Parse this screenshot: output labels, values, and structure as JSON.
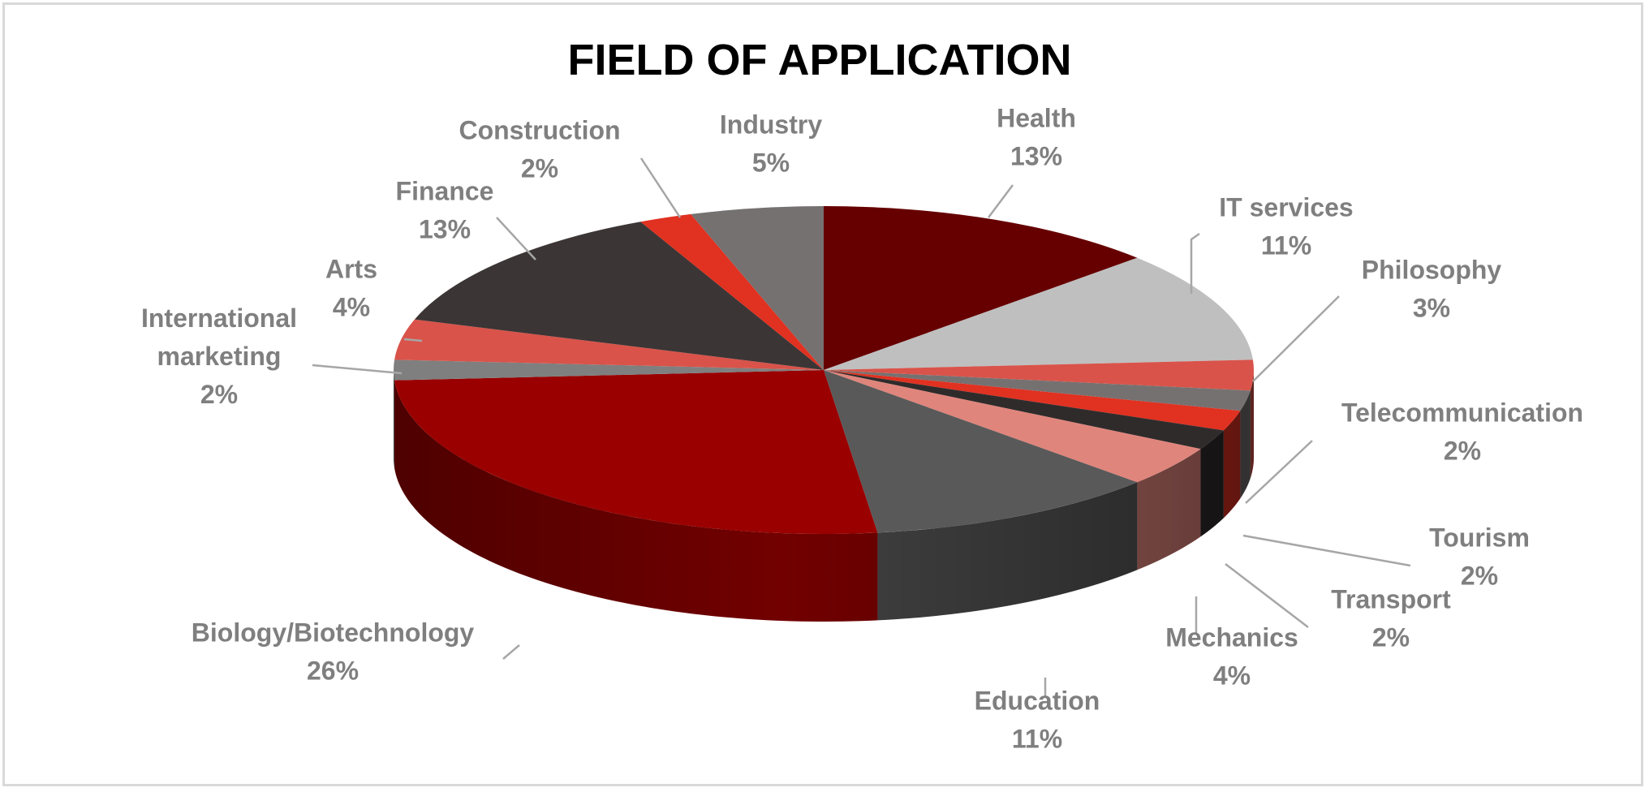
{
  "chart_data": {
    "type": "pie",
    "title": "FIELD OF APPLICATION",
    "slices": [
      {
        "label": "Health",
        "value": 13,
        "pct_text": "13%",
        "color": "#660000"
      },
      {
        "label": "IT services",
        "value": 11,
        "pct_text": "11%",
        "color": "#bfbfbf"
      },
      {
        "label": "Philosophy",
        "value": 3,
        "pct_text": "3%",
        "color": "#d9534a"
      },
      {
        "label": "Telecommunication",
        "value": 2,
        "pct_text": "2%",
        "color": "#767171"
      },
      {
        "label": "Tourism",
        "value": 2,
        "pct_text": "2%",
        "color": "#e03121"
      },
      {
        "label": "Transport",
        "value": 2,
        "pct_text": "2%",
        "color": "#2f2b2b"
      },
      {
        "label": "Mechanics",
        "value": 4,
        "pct_text": "4%",
        "color": "#e0857c"
      },
      {
        "label": "Education",
        "value": 11,
        "pct_text": "11%",
        "color": "#595959"
      },
      {
        "label": "Biology/Biotechnology",
        "value": 26,
        "pct_text": "26%",
        "color": "#9a0000"
      },
      {
        "label": "International marketing",
        "value": 2,
        "pct_text": "2%",
        "color": "#7f7f7f"
      },
      {
        "label": "Arts",
        "value": 4,
        "pct_text": "4%",
        "color": "#d9534a"
      },
      {
        "label": "Finance",
        "value": 13,
        "pct_text": "13%",
        "color": "#3b3535"
      },
      {
        "label": "Construction",
        "value": 2,
        "pct_text": "2%",
        "color": "#e03121"
      },
      {
        "label": "Industry",
        "value": 5,
        "pct_text": "5%",
        "color": "#767171"
      }
    ],
    "style": "3d-pie",
    "legend": "none (data labels with leader lines)"
  }
}
